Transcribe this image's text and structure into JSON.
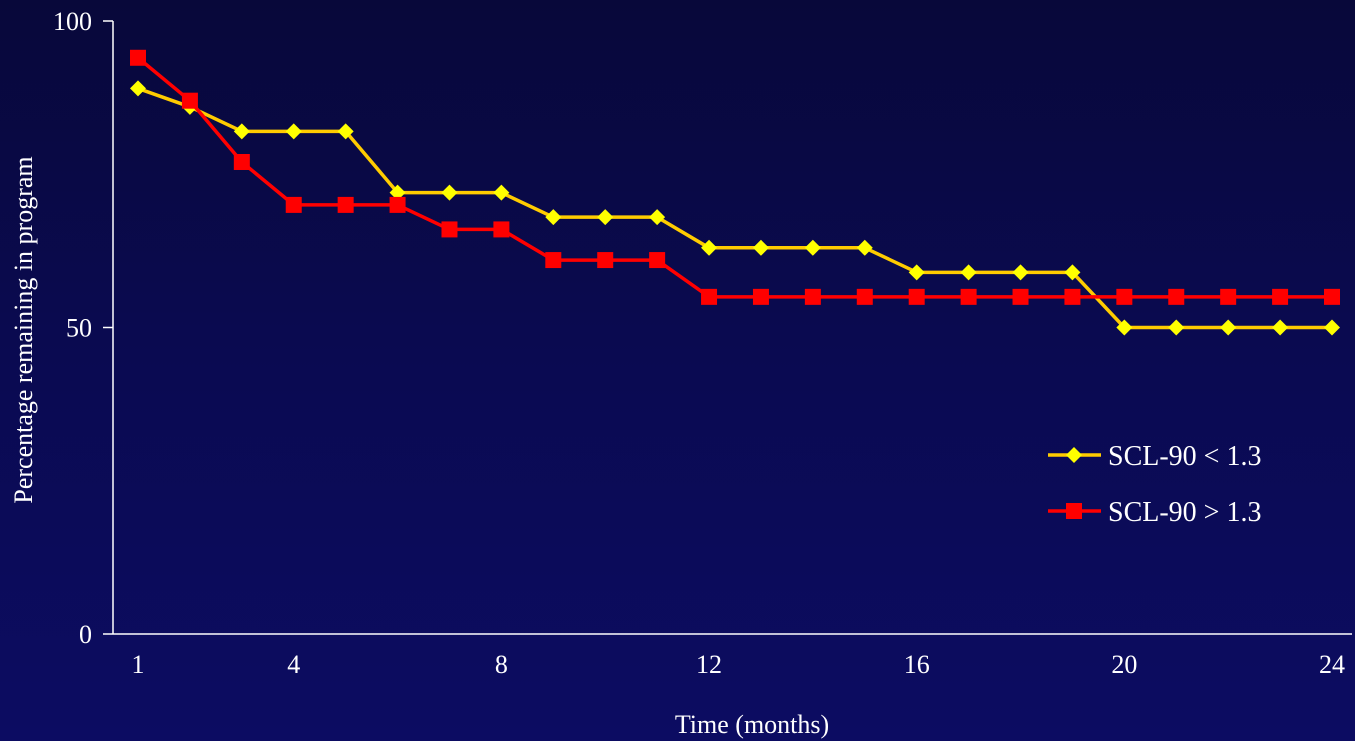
{
  "chart_data": {
    "type": "line",
    "xlabel": "Time (months)",
    "ylabel": "Percentage remaining in program",
    "x_ticks": [
      1,
      4,
      8,
      12,
      16,
      20,
      24
    ],
    "y_ticks": [
      0,
      50,
      100
    ],
    "ylim": [
      0,
      100
    ],
    "xlim": [
      1,
      24
    ],
    "x": [
      1,
      2,
      3,
      4,
      5,
      6,
      7,
      8,
      9,
      10,
      11,
      12,
      13,
      14,
      15,
      16,
      17,
      18,
      19,
      20,
      21,
      22,
      23,
      24
    ],
    "legend_position": "right",
    "grid": false,
    "series": [
      {
        "name": "SCL-90 < 1.3",
        "color": "#ffff00",
        "line_color": "#ffcc00",
        "marker": "diamond",
        "values": [
          89,
          86,
          82,
          82,
          82,
          72,
          72,
          72,
          68,
          68,
          68,
          63,
          63,
          63,
          63,
          59,
          59,
          59,
          59,
          50,
          50,
          50,
          50,
          50
        ]
      },
      {
        "name": "SCL-90 > 1.3",
        "color": "#ff0000",
        "line_color": "#ff0000",
        "marker": "square",
        "values": [
          94,
          87,
          77,
          70,
          70,
          70,
          66,
          66,
          61,
          61,
          61,
          55,
          55,
          55,
          55,
          55,
          55,
          55,
          55,
          55,
          55,
          55,
          55,
          55
        ]
      }
    ]
  }
}
